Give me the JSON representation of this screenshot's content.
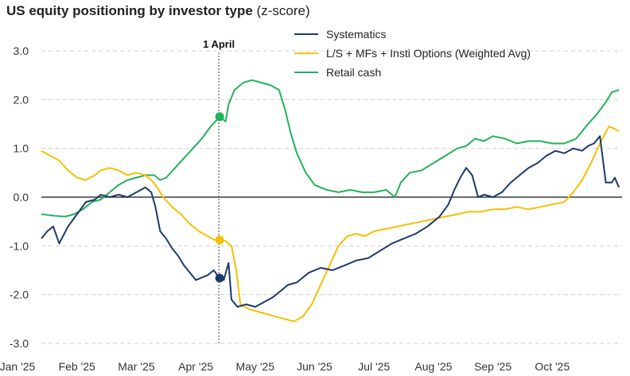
{
  "chart_data": {
    "type": "line",
    "title": "US equity positioning by investor type",
    "subtitle": "(z-score)",
    "xlabel": "",
    "ylabel": "",
    "ylim": [
      -3.0,
      3.0
    ],
    "y_ticks": [
      3.0,
      2.0,
      1.0,
      0.0,
      -1.0,
      -2.0,
      -3.0
    ],
    "y_tick_labels": [
      "3.0",
      "2.0",
      "1.0",
      "0.0",
      "-1.0",
      "-2.0",
      "-3.0"
    ],
    "x_range": [
      0,
      9.8
    ],
    "x_ticks": [
      0,
      1,
      2,
      3,
      4,
      5,
      6,
      7,
      8,
      9
    ],
    "x_tick_labels": [
      "Jan '25",
      "Feb '25",
      "Mar '25",
      "Apr '25",
      "May '25",
      "Jun '25",
      "Jul '25",
      "Aug '25",
      "Sep '25",
      "Oct '25"
    ],
    "grid": "horizontal dashed",
    "legend_position": "top-center",
    "annotation": {
      "label": "1 April",
      "x": 3.0
    },
    "series": [
      {
        "name": "Systematics",
        "color": "#1b3a6b",
        "marker": {
          "x": 3.0,
          "y": -1.66
        },
        "points": [
          [
            0,
            -0.85
          ],
          [
            0.1,
            -0.7
          ],
          [
            0.2,
            -0.6
          ],
          [
            0.3,
            -0.95
          ],
          [
            0.45,
            -0.6
          ],
          [
            0.6,
            -0.35
          ],
          [
            0.75,
            -0.1
          ],
          [
            0.9,
            -0.05
          ],
          [
            1.0,
            0.05
          ],
          [
            1.15,
            0.0
          ],
          [
            1.3,
            0.05
          ],
          [
            1.45,
            0.0
          ],
          [
            1.6,
            0.1
          ],
          [
            1.75,
            0.2
          ],
          [
            1.85,
            0.1
          ],
          [
            1.92,
            -0.2
          ],
          [
            2.0,
            -0.7
          ],
          [
            2.1,
            -0.85
          ],
          [
            2.2,
            -1.05
          ],
          [
            2.3,
            -1.2
          ],
          [
            2.4,
            -1.4
          ],
          [
            2.5,
            -1.55
          ],
          [
            2.6,
            -1.7
          ],
          [
            2.7,
            -1.65
          ],
          [
            2.8,
            -1.6
          ],
          [
            2.9,
            -1.5
          ],
          [
            3.0,
            -1.66
          ],
          [
            3.07,
            -1.7
          ],
          [
            3.15,
            -1.35
          ],
          [
            3.2,
            -2.1
          ],
          [
            3.3,
            -2.25
          ],
          [
            3.45,
            -2.2
          ],
          [
            3.6,
            -2.25
          ],
          [
            3.75,
            -2.15
          ],
          [
            3.9,
            -2.05
          ],
          [
            4.0,
            -1.95
          ],
          [
            4.15,
            -1.8
          ],
          [
            4.3,
            -1.75
          ],
          [
            4.5,
            -1.55
          ],
          [
            4.7,
            -1.45
          ],
          [
            4.9,
            -1.5
          ],
          [
            5.1,
            -1.4
          ],
          [
            5.3,
            -1.3
          ],
          [
            5.5,
            -1.25
          ],
          [
            5.7,
            -1.1
          ],
          [
            5.9,
            -0.95
          ],
          [
            6.1,
            -0.85
          ],
          [
            6.3,
            -0.75
          ],
          [
            6.5,
            -0.6
          ],
          [
            6.7,
            -0.4
          ],
          [
            6.85,
            -0.15
          ],
          [
            6.95,
            0.15
          ],
          [
            7.05,
            0.4
          ],
          [
            7.15,
            0.6
          ],
          [
            7.25,
            0.45
          ],
          [
            7.35,
            0.0
          ],
          [
            7.45,
            0.05
          ],
          [
            7.6,
            0.0
          ],
          [
            7.75,
            0.1
          ],
          [
            7.9,
            0.3
          ],
          [
            8.05,
            0.45
          ],
          [
            8.2,
            0.6
          ],
          [
            8.35,
            0.7
          ],
          [
            8.5,
            0.85
          ],
          [
            8.65,
            0.95
          ],
          [
            8.8,
            0.9
          ],
          [
            8.95,
            1.0
          ],
          [
            9.1,
            0.95
          ],
          [
            9.2,
            1.05
          ],
          [
            9.3,
            1.1
          ],
          [
            9.4,
            1.25
          ],
          [
            9.5,
            0.3
          ],
          [
            9.6,
            0.3
          ],
          [
            9.65,
            0.4
          ],
          [
            9.72,
            0.2
          ]
        ]
      },
      {
        "name": "L/S + MFs + Insti Options (Weighted Avg)",
        "color": "#f5c000",
        "marker": {
          "x": 3.0,
          "y": -0.88
        },
        "points": [
          [
            0,
            0.95
          ],
          [
            0.15,
            0.85
          ],
          [
            0.3,
            0.75
          ],
          [
            0.45,
            0.55
          ],
          [
            0.6,
            0.4
          ],
          [
            0.75,
            0.35
          ],
          [
            0.9,
            0.45
          ],
          [
            1.0,
            0.55
          ],
          [
            1.15,
            0.6
          ],
          [
            1.3,
            0.55
          ],
          [
            1.45,
            0.45
          ],
          [
            1.6,
            0.5
          ],
          [
            1.75,
            0.45
          ],
          [
            1.85,
            0.35
          ],
          [
            1.95,
            0.2
          ],
          [
            2.05,
            0.0
          ],
          [
            2.2,
            -0.2
          ],
          [
            2.35,
            -0.35
          ],
          [
            2.5,
            -0.55
          ],
          [
            2.65,
            -0.7
          ],
          [
            2.8,
            -0.8
          ],
          [
            2.9,
            -0.87
          ],
          [
            3.0,
            -0.88
          ],
          [
            3.1,
            -0.9
          ],
          [
            3.2,
            -1.0
          ],
          [
            3.28,
            -1.5
          ],
          [
            3.35,
            -2.2
          ],
          [
            3.5,
            -2.3
          ],
          [
            3.65,
            -2.35
          ],
          [
            3.8,
            -2.4
          ],
          [
            3.95,
            -2.45
          ],
          [
            4.1,
            -2.5
          ],
          [
            4.25,
            -2.55
          ],
          [
            4.4,
            -2.45
          ],
          [
            4.55,
            -2.2
          ],
          [
            4.7,
            -1.8
          ],
          [
            4.85,
            -1.4
          ],
          [
            5.0,
            -1.0
          ],
          [
            5.15,
            -0.8
          ],
          [
            5.3,
            -0.75
          ],
          [
            5.45,
            -0.8
          ],
          [
            5.6,
            -0.7
          ],
          [
            5.8,
            -0.65
          ],
          [
            6.0,
            -0.6
          ],
          [
            6.2,
            -0.55
          ],
          [
            6.4,
            -0.5
          ],
          [
            6.6,
            -0.45
          ],
          [
            6.8,
            -0.4
          ],
          [
            7.0,
            -0.35
          ],
          [
            7.2,
            -0.3
          ],
          [
            7.4,
            -0.3
          ],
          [
            7.6,
            -0.25
          ],
          [
            7.8,
            -0.25
          ],
          [
            8.0,
            -0.2
          ],
          [
            8.2,
            -0.25
          ],
          [
            8.4,
            -0.2
          ],
          [
            8.6,
            -0.15
          ],
          [
            8.8,
            -0.1
          ],
          [
            8.95,
            0.1
          ],
          [
            9.1,
            0.35
          ],
          [
            9.25,
            0.7
          ],
          [
            9.4,
            1.1
          ],
          [
            9.55,
            1.45
          ],
          [
            9.65,
            1.4
          ],
          [
            9.72,
            1.35
          ]
        ]
      },
      {
        "name": "Retail cash",
        "color": "#22b25a",
        "marker": {
          "x": 3.0,
          "y": 1.65
        },
        "points": [
          [
            0,
            -0.35
          ],
          [
            0.2,
            -0.38
          ],
          [
            0.4,
            -0.4
          ],
          [
            0.55,
            -0.35
          ],
          [
            0.7,
            -0.25
          ],
          [
            0.85,
            -0.1
          ],
          [
            1.0,
            -0.05
          ],
          [
            1.15,
            0.1
          ],
          [
            1.3,
            0.25
          ],
          [
            1.45,
            0.35
          ],
          [
            1.6,
            0.4
          ],
          [
            1.75,
            0.45
          ],
          [
            1.9,
            0.45
          ],
          [
            2.0,
            0.35
          ],
          [
            2.1,
            0.4
          ],
          [
            2.25,
            0.6
          ],
          [
            2.4,
            0.8
          ],
          [
            2.55,
            1.0
          ],
          [
            2.7,
            1.2
          ],
          [
            2.85,
            1.45
          ],
          [
            3.0,
            1.65
          ],
          [
            3.1,
            1.55
          ],
          [
            3.15,
            1.9
          ],
          [
            3.25,
            2.2
          ],
          [
            3.4,
            2.35
          ],
          [
            3.55,
            2.4
          ],
          [
            3.7,
            2.35
          ],
          [
            3.85,
            2.3
          ],
          [
            4.0,
            2.2
          ],
          [
            4.1,
            1.8
          ],
          [
            4.2,
            1.3
          ],
          [
            4.3,
            0.9
          ],
          [
            4.45,
            0.5
          ],
          [
            4.6,
            0.25
          ],
          [
            4.8,
            0.15
          ],
          [
            5.0,
            0.1
          ],
          [
            5.2,
            0.15
          ],
          [
            5.4,
            0.1
          ],
          [
            5.6,
            0.1
          ],
          [
            5.8,
            0.15
          ],
          [
            5.95,
            0.0
          ],
          [
            6.05,
            0.3
          ],
          [
            6.2,
            0.5
          ],
          [
            6.4,
            0.55
          ],
          [
            6.6,
            0.7
          ],
          [
            6.8,
            0.85
          ],
          [
            7.0,
            1.0
          ],
          [
            7.15,
            1.05
          ],
          [
            7.3,
            1.2
          ],
          [
            7.45,
            1.15
          ],
          [
            7.6,
            1.25
          ],
          [
            7.8,
            1.2
          ],
          [
            8.0,
            1.1
          ],
          [
            8.2,
            1.15
          ],
          [
            8.4,
            1.15
          ],
          [
            8.6,
            1.1
          ],
          [
            8.8,
            1.1
          ],
          [
            9.0,
            1.2
          ],
          [
            9.2,
            1.5
          ],
          [
            9.35,
            1.7
          ],
          [
            9.5,
            1.95
          ],
          [
            9.6,
            2.15
          ],
          [
            9.72,
            2.2
          ]
        ]
      }
    ]
  }
}
